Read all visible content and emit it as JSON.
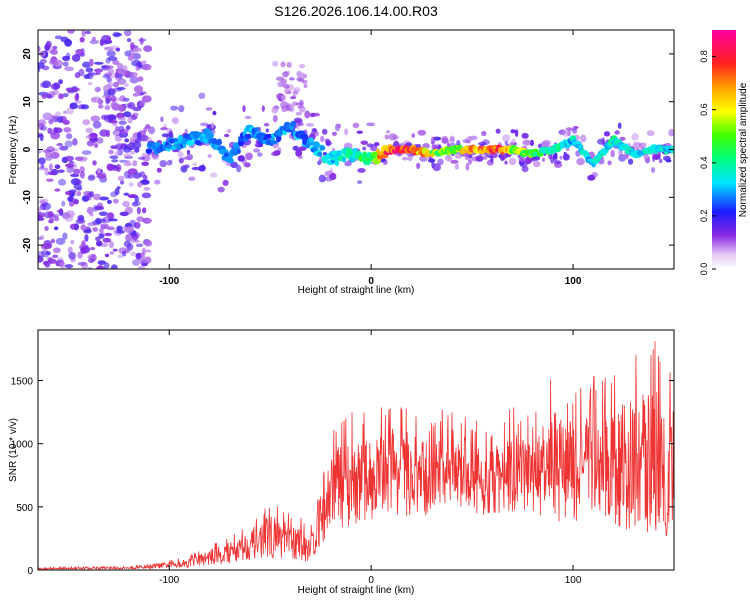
{
  "title": "S126.2026.106.14.00.R03",
  "chart_data": [
    {
      "type": "heatmap",
      "xlabel": "Height of straight line (km)",
      "ylabel": "Frequency (Hz)",
      "xlim": [
        -165,
        150
      ],
      "ylim": [
        -25,
        25
      ],
      "xticks": [
        -100,
        0,
        100
      ],
      "yticks": [
        -20,
        -10,
        0,
        10,
        20
      ],
      "colorbar": {
        "label": "Normalized spectral amplitude",
        "range": [
          0,
          0.9
        ],
        "ticks": [
          "0.0",
          "0.2",
          "0.4",
          "0.6",
          "0.8"
        ]
      },
      "ridge": {
        "x": [
          -110,
          -100,
          -90,
          -80,
          -70,
          -60,
          -50,
          -40,
          -30,
          -20,
          -10,
          0,
          10,
          20,
          30,
          40,
          50,
          60,
          70,
          80,
          90,
          100,
          110,
          120,
          130,
          140,
          150
        ],
        "freq_hz": [
          0,
          1,
          2,
          3,
          -2,
          4,
          2,
          5,
          1,
          -2,
          -1,
          -2,
          0,
          0,
          -1,
          0,
          0,
          0,
          0,
          -1,
          0,
          2,
          -3,
          2,
          -1,
          0,
          0
        ],
        "amplitude": [
          0.25,
          0.3,
          0.3,
          0.3,
          0.28,
          0.3,
          0.28,
          0.3,
          0.3,
          0.35,
          0.4,
          0.5,
          0.9,
          0.85,
          0.6,
          0.5,
          0.75,
          0.85,
          0.6,
          0.5,
          0.4,
          0.35,
          0.35,
          0.4,
          0.35,
          0.4,
          0.35
        ]
      },
      "noise_region_x": [
        -165,
        -110
      ]
    },
    {
      "type": "line",
      "xlabel": "Height of straight line (km)",
      "ylabel": "SNR (10 * v/v)",
      "xlim": [
        -165,
        150
      ],
      "ylim": [
        0,
        1900
      ],
      "xticks": [
        -100,
        0,
        100
      ],
      "yticks": [
        0,
        500,
        1000,
        1500
      ],
      "color": "#ee3333",
      "envelope": {
        "x": [
          -165,
          -120,
          -100,
          -90,
          -80,
          -70,
          -60,
          -50,
          -40,
          -30,
          -24,
          -20,
          -10,
          0,
          10,
          20,
          30,
          40,
          50,
          60,
          70,
          80,
          90,
          100,
          110,
          120,
          130,
          140,
          150
        ],
        "y_peak": [
          20,
          30,
          80,
          120,
          200,
          280,
          400,
          550,
          450,
          380,
          700,
          1200,
          1250,
          1250,
          1400,
          1300,
          1200,
          1350,
          1200,
          1150,
          1300,
          1200,
          1550,
          1450,
          1550,
          1600,
          1700,
          1900,
          1650
        ],
        "y_base": [
          5,
          8,
          15,
          20,
          40,
          50,
          80,
          100,
          80,
          60,
          200,
          300,
          350,
          400,
          450,
          400,
          400,
          500,
          450,
          400,
          450,
          450,
          400,
          350,
          400,
          350,
          300,
          250,
          250
        ]
      }
    }
  ]
}
